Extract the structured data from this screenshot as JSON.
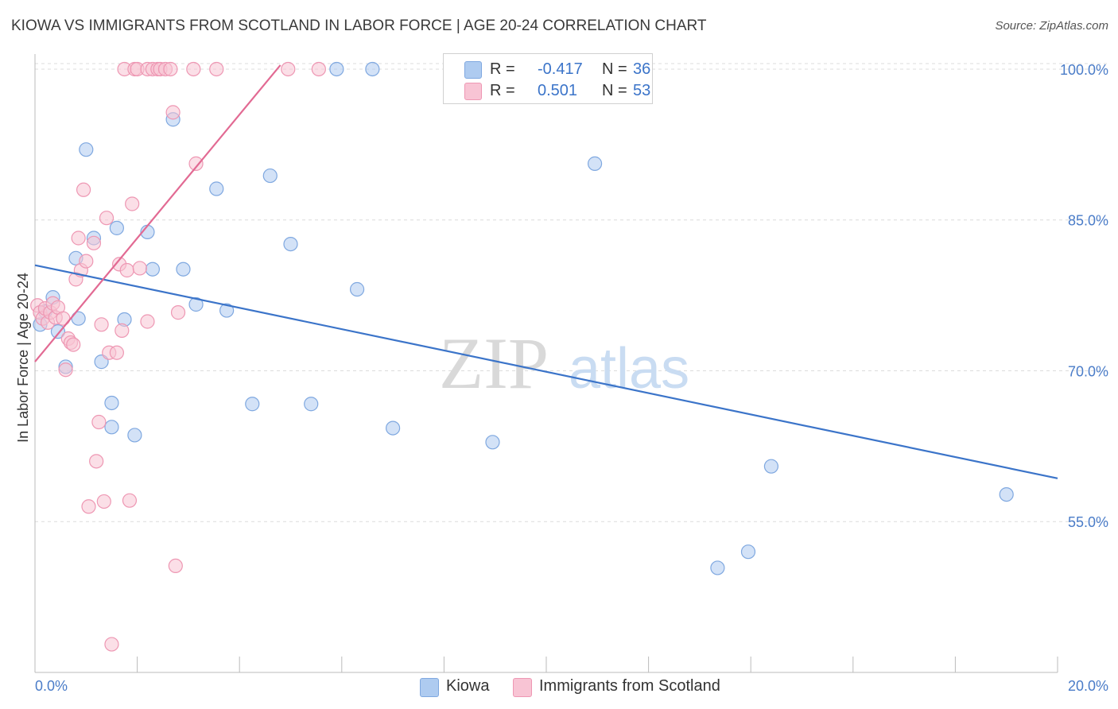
{
  "title": "KIOWA VS IMMIGRANTS FROM SCOTLAND IN LABOR FORCE | AGE 20-24 CORRELATION CHART",
  "source": "Source: ZipAtlas.com",
  "watermark": {
    "zip": "ZIP",
    "atlas": "atlas"
  },
  "legend": {
    "rows": [
      {
        "r_label": "R =",
        "r_value": "-0.417",
        "n_label": "N =",
        "n_value": "36",
        "color": "#aecbf0",
        "border": "#7fa8e0"
      },
      {
        "r_label": "R =",
        "r_value": "0.501",
        "n_label": "N =",
        "n_value": "53",
        "color": "#f8c4d4",
        "border": "#ee97b3"
      }
    ]
  },
  "bottom_legend": {
    "kiowa": "Kiowa",
    "scotland": "Immigrants from Scotland"
  },
  "chart_data": {
    "type": "scatter",
    "title": "KIOWA VS IMMIGRANTS FROM SCOTLAND IN LABOR FORCE | AGE 20-24 CORRELATION CHART",
    "xlabel": "",
    "ylabel": "In Labor Force | Age 20-24",
    "xlim": [
      0,
      20
    ],
    "ylim": [
      40,
      101.5
    ],
    "x_tick_labels": [
      "0.0%",
      "20.0%"
    ],
    "y_ticks": [
      55,
      70,
      85,
      100
    ],
    "y_tick_labels": [
      "55.0%",
      "70.0%",
      "85.0%",
      "100.0%"
    ],
    "grid": true,
    "series": [
      {
        "name": "Kiowa",
        "color": "#aecbf0",
        "edge": "#7fa8e0",
        "line_color": "#3b74c9",
        "trend": {
          "x": [
            0,
            20
          ],
          "y": [
            80.5,
            59.3
          ]
        },
        "points": [
          [
            0.1,
            74.6
          ],
          [
            0.2,
            75.9
          ],
          [
            0.35,
            77.3
          ],
          [
            0.45,
            73.9
          ],
          [
            0.6,
            70.4
          ],
          [
            0.8,
            81.2
          ],
          [
            0.85,
            75.2
          ],
          [
            1.0,
            92.0
          ],
          [
            1.15,
            83.2
          ],
          [
            1.3,
            70.9
          ],
          [
            1.5,
            66.8
          ],
          [
            1.5,
            64.4
          ],
          [
            1.6,
            84.2
          ],
          [
            1.75,
            75.1
          ],
          [
            1.95,
            63.6
          ],
          [
            2.2,
            83.8
          ],
          [
            2.3,
            80.1
          ],
          [
            2.7,
            95.0
          ],
          [
            2.9,
            80.1
          ],
          [
            3.15,
            76.6
          ],
          [
            3.55,
            88.1
          ],
          [
            3.75,
            76.0
          ],
          [
            4.25,
            66.7
          ],
          [
            4.6,
            89.4
          ],
          [
            5.0,
            82.6
          ],
          [
            5.4,
            66.7
          ],
          [
            5.9,
            100.0
          ],
          [
            6.3,
            78.1
          ],
          [
            6.6,
            100.0
          ],
          [
            7.0,
            64.3
          ],
          [
            8.95,
            62.9
          ],
          [
            10.95,
            90.6
          ],
          [
            13.35,
            50.4
          ],
          [
            13.95,
            52.0
          ],
          [
            14.4,
            60.5
          ],
          [
            19.0,
            57.7
          ]
        ]
      },
      {
        "name": "Immigrants from Scotland",
        "color": "#f8c4d4",
        "edge": "#ee97b3",
        "line_color": "#e26a93",
        "trend": {
          "x": [
            0,
            4.8
          ],
          "y": [
            70.9,
            100.4
          ]
        },
        "points": [
          [
            0.05,
            76.5
          ],
          [
            0.1,
            75.8
          ],
          [
            0.15,
            75.2
          ],
          [
            0.2,
            76.2
          ],
          [
            0.25,
            74.8
          ],
          [
            0.3,
            75.8
          ],
          [
            0.35,
            76.7
          ],
          [
            0.4,
            75.3
          ],
          [
            0.45,
            76.3
          ],
          [
            0.55,
            75.2
          ],
          [
            0.6,
            70.1
          ],
          [
            0.65,
            73.2
          ],
          [
            0.7,
            72.8
          ],
          [
            0.75,
            72.6
          ],
          [
            0.8,
            79.1
          ],
          [
            0.85,
            83.2
          ],
          [
            0.9,
            80.0
          ],
          [
            0.95,
            88.0
          ],
          [
            1.0,
            80.9
          ],
          [
            1.05,
            56.5
          ],
          [
            1.15,
            82.7
          ],
          [
            1.2,
            61.0
          ],
          [
            1.25,
            64.9
          ],
          [
            1.3,
            74.6
          ],
          [
            1.35,
            57.0
          ],
          [
            1.4,
            85.2
          ],
          [
            1.45,
            71.8
          ],
          [
            1.5,
            42.8
          ],
          [
            1.6,
            71.8
          ],
          [
            1.65,
            80.6
          ],
          [
            1.7,
            74.0
          ],
          [
            1.75,
            100.0
          ],
          [
            1.8,
            80.0
          ],
          [
            1.85,
            57.1
          ],
          [
            1.9,
            86.6
          ],
          [
            1.95,
            100.0
          ],
          [
            2.0,
            100.0
          ],
          [
            2.05,
            80.2
          ],
          [
            2.2,
            100.0
          ],
          [
            2.2,
            74.9
          ],
          [
            2.3,
            100.0
          ],
          [
            2.4,
            100.0
          ],
          [
            2.45,
            100.0
          ],
          [
            2.55,
            100.0
          ],
          [
            2.65,
            100.0
          ],
          [
            2.7,
            95.7
          ],
          [
            2.75,
            50.6
          ],
          [
            2.8,
            75.8
          ],
          [
            3.1,
            100.0
          ],
          [
            3.15,
            90.6
          ],
          [
            3.55,
            100.0
          ],
          [
            4.95,
            100.0
          ],
          [
            5.55,
            100.0
          ]
        ]
      }
    ]
  }
}
